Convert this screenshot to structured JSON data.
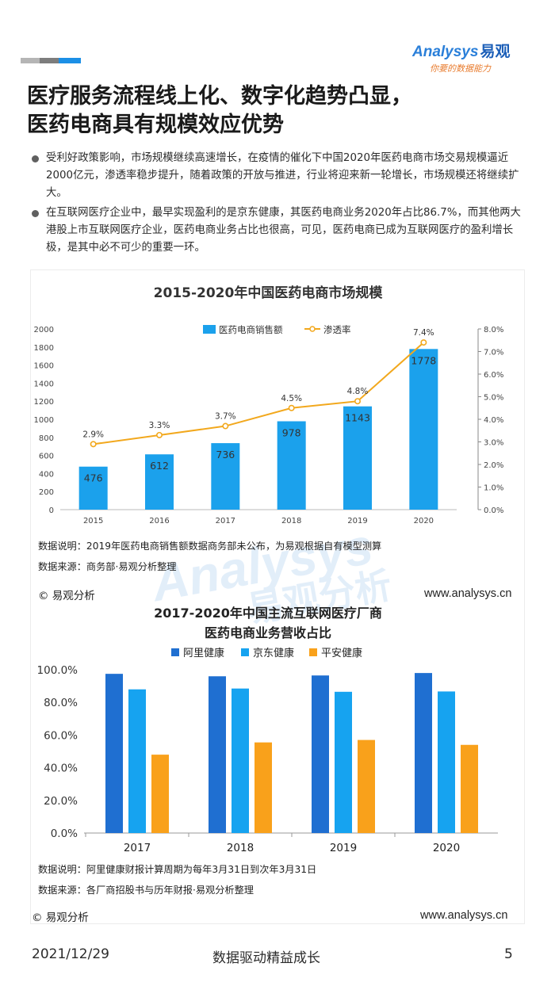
{
  "brand": {
    "logo_text": "nalysys",
    "logo_prefix": "A",
    "logo_cn": "易观",
    "slogan": "你要的数据能力",
    "accent": "#1b8fe6"
  },
  "header": {
    "title_line1": "医疗服务流程线上化、数字化趋势凸显，",
    "title_line2": "医药电商具有规模效应优势"
  },
  "bullets": [
    "受利好政策影响，市场规模继续高速增长，在疫情的催化下中国2020年医药电商市场交易规模逼近2000亿元，渗透率稳步提升，随着政策的开放与推进，行业将迎来新一轮增长，市场规模还将继续扩大。",
    "在互联网医疗企业中，最早实现盈利的是京东健康，其医药电商业务2020年占比86.7%，而其他两大港股上市互联网医疗企业，医药电商业务占比也很高，可见，医药电商已成为互联网医疗的盈利增长极，是其中必不可少的重要一环。"
  ],
  "chart_data": [
    {
      "type": "bar+line",
      "title": "2015-2020年中国医药电商市场规模",
      "categories": [
        "2015",
        "2016",
        "2017",
        "2018",
        "2019",
        "2020"
      ],
      "series": [
        {
          "name": "医药电商销售额",
          "kind": "bar",
          "axis": "left",
          "color": "#1ba1ec",
          "values": [
            476,
            612,
            736,
            978,
            1143,
            1778
          ]
        },
        {
          "name": "渗透率",
          "kind": "line",
          "axis": "right",
          "color": "#f2a81d",
          "values": [
            2.9,
            3.3,
            3.7,
            4.5,
            4.8,
            7.4
          ],
          "labels": [
            "2.9%",
            "3.3%",
            "3.7%",
            "4.5%",
            "4.8%",
            "7.4%"
          ]
        }
      ],
      "ylim": [
        0,
        2000
      ],
      "y_ticks": [
        "0",
        "200",
        "400",
        "600",
        "800",
        "1000",
        "1200",
        "1400",
        "1600",
        "1800",
        "2000"
      ],
      "y2lim": [
        0,
        8
      ],
      "y2_ticks": [
        "0.0%",
        "1.0%",
        "2.0%",
        "3.0%",
        "4.0%",
        "5.0%",
        "6.0%",
        "7.0%",
        "8.0%"
      ],
      "legend": "top-center",
      "note": "数据说明：2019年医药电商销售额数据商务部未公布，为易观根据自有模型测算",
      "source": "数据来源：商务部·易观分析整理"
    },
    {
      "type": "bar",
      "title_line1": "2017-2020年中国主流互联网医疗厂商",
      "title_line2": "医药电商业务营收占比",
      "categories": [
        "2017",
        "2018",
        "2019",
        "2020"
      ],
      "series": [
        {
          "name": "阿里健康",
          "color": "#1f6fd1",
          "values": [
            97.5,
            96.0,
            96.5,
            98.0
          ]
        },
        {
          "name": "京东健康",
          "color": "#16a3f0",
          "values": [
            88.0,
            88.5,
            86.5,
            86.7
          ]
        },
        {
          "name": "平安健康",
          "color": "#f9a11b",
          "values": [
            48.0,
            55.5,
            57.0,
            54.0
          ]
        }
      ],
      "ylim": [
        0,
        100
      ],
      "y_ticks": [
        "0.0%",
        "20.0%",
        "40.0%",
        "60.0%",
        "80.0%",
        "100.0%"
      ],
      "legend": "top-center",
      "note": "数据说明：阿里健康财报计算周期为每年3月31日到次年3月31日",
      "source": "数据来源：各厂商招股书与历年财报·易观分析整理"
    }
  ],
  "credits": {
    "copyright": "© 易观分析",
    "url": "www.analysys.cn"
  },
  "watermark": {
    "text_en": "Analysys",
    "text_cn": "易观分析"
  },
  "footer": {
    "date": "2021/12/29",
    "slogan": "数据驱动精益成长",
    "page": "5"
  }
}
